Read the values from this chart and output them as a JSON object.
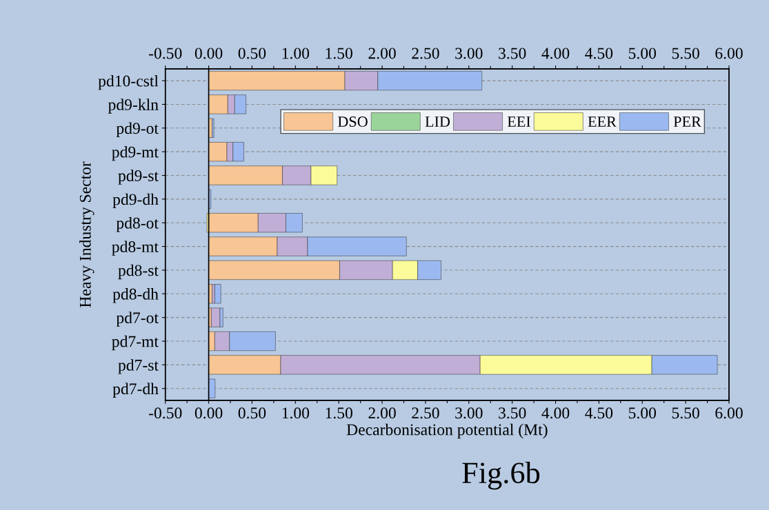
{
  "chart_data": {
    "type": "bar",
    "orientation": "horizontal",
    "stacked": true,
    "xlabel": "Decarbonisation potential (Mt)",
    "ylabel": "Heavy Industry Sector",
    "annotations": [
      "Fig.6b"
    ],
    "categories": [
      "pd10-cstl",
      "pd9-kln",
      "pd9-ot",
      "pd9-mt",
      "pd9-st",
      "pd9-dh",
      "pd8-ot",
      "pd8-mt",
      "pd8-st",
      "pd8-dh",
      "pd7-ot",
      "pd7-mt",
      "pd7-st",
      "pd7-dh"
    ],
    "series": [
      {
        "name": "DSO",
        "color": "#f8c594",
        "values": [
          1.57,
          0.22,
          0.04,
          0.21,
          0.85,
          null,
          0.57,
          0.79,
          1.51,
          0.04,
          0.03,
          0.07,
          0.83,
          null
        ]
      },
      {
        "name": "LID",
        "color": "#9bd49b",
        "values": [
          null,
          null,
          null,
          null,
          null,
          null,
          null,
          null,
          null,
          null,
          null,
          null,
          null,
          null
        ]
      },
      {
        "name": "EEI",
        "color": "#c1aed6",
        "values": [
          0.38,
          0.08,
          null,
          0.07,
          0.33,
          null,
          0.32,
          0.35,
          0.61,
          0.03,
          0.1,
          0.17,
          2.3,
          null
        ]
      },
      {
        "name": "EER",
        "color": "#fbfb9a",
        "values": [
          null,
          null,
          null,
          null,
          0.3,
          null,
          -0.02,
          null,
          0.29,
          null,
          null,
          null,
          1.98,
          null
        ]
      },
      {
        "name": "PER",
        "color": "#9bb9f0",
        "values": [
          1.2,
          0.13,
          0.02,
          0.125,
          null,
          0.025,
          0.19,
          1.14,
          0.27,
          0.07,
          0.035,
          0.53,
          0.755,
          0.074
        ]
      }
    ],
    "xlim": [
      -0.5,
      6.0
    ],
    "xticks": [
      {
        "value": -0.5,
        "label": "-0.50"
      },
      {
        "value": -0.25,
        "label": null
      },
      {
        "value": 0,
        "label": "0.00"
      },
      {
        "value": 0.25,
        "label": null
      },
      {
        "value": 0.5,
        "label": "0.50"
      },
      {
        "value": 0.75,
        "label": null
      },
      {
        "value": 1.0,
        "label": "1.00"
      },
      {
        "value": 1.25,
        "label": null
      },
      {
        "value": 1.5,
        "label": "1.50"
      },
      {
        "value": 1.75,
        "label": null
      },
      {
        "value": 2.0,
        "label": "2.00"
      },
      {
        "value": 2.25,
        "label": null
      },
      {
        "value": 2.5,
        "label": "2.50"
      },
      {
        "value": 2.75,
        "label": null
      },
      {
        "value": 3.0,
        "label": "3.00"
      },
      {
        "value": 3.25,
        "label": null
      },
      {
        "value": 3.5,
        "label": "3.50"
      },
      {
        "value": 3.75,
        "label": null
      },
      {
        "value": 4.0,
        "label": "4.00"
      },
      {
        "value": 4.25,
        "label": null
      },
      {
        "value": 4.5,
        "label": "4.50"
      },
      {
        "value": 4.75,
        "label": null
      },
      {
        "value": 5.0,
        "label": "5.00"
      },
      {
        "value": 5.25,
        "label": null
      },
      {
        "value": 5.5,
        "label": "5.50"
      },
      {
        "value": 5.75,
        "label": null
      },
      {
        "value": 6.0,
        "label": "6.00"
      }
    ],
    "x2lim": [
      -0.5,
      6.0
    ],
    "x2ticks": [
      {
        "value": -0.5,
        "label": "-0.50"
      },
      {
        "value": -0.25,
        "label": null
      },
      {
        "value": 0,
        "label": "0.00"
      },
      {
        "value": 0.25,
        "label": null
      },
      {
        "value": 0.5,
        "label": "0.50"
      },
      {
        "value": 0.75,
        "label": null
      },
      {
        "value": 1.0,
        "label": "1.00"
      },
      {
        "value": 1.25,
        "label": null
      },
      {
        "value": 1.5,
        "label": "1.50"
      },
      {
        "value": 1.75,
        "label": null
      },
      {
        "value": 2.0,
        "label": "2.00"
      },
      {
        "value": 2.25,
        "label": null
      },
      {
        "value": 2.5,
        "label": "2.50"
      },
      {
        "value": 2.75,
        "label": null
      },
      {
        "value": 3.0,
        "label": "3.00"
      },
      {
        "value": 3.25,
        "label": null
      },
      {
        "value": 3.5,
        "label": "3.50"
      },
      {
        "value": 3.75,
        "label": null
      },
      {
        "value": 4.0,
        "label": "4.00"
      },
      {
        "value": 4.25,
        "label": null
      },
      {
        "value": 4.5,
        "label": "4.50"
      },
      {
        "value": 4.75,
        "label": null
      },
      {
        "value": 5.0,
        "label": "5.00"
      },
      {
        "value": 5.25,
        "label": null
      },
      {
        "value": 5.5,
        "label": "5.50"
      },
      {
        "value": 5.75,
        "label": null
      },
      {
        "value": 6.0,
        "label": "6.00"
      }
    ],
    "grid": "y",
    "legend": "top right"
  }
}
